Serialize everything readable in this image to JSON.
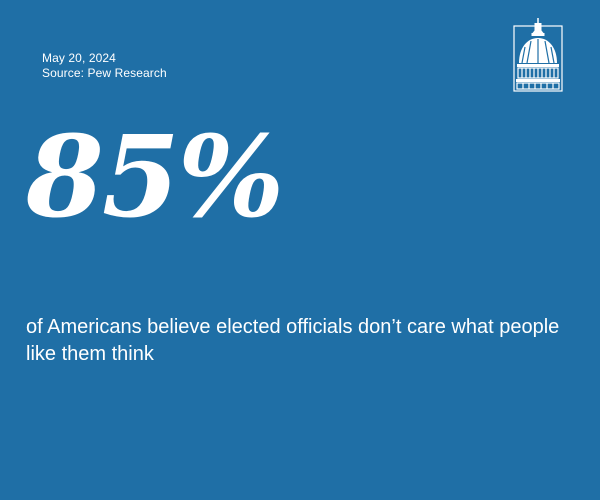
{
  "card": {
    "date": "May 20, 2024",
    "source": "Source: Pew Research",
    "stat": "85%",
    "caption": "of Americans believe elected officials don’t care what people like them think"
  },
  "colors": {
    "background": "#1f6fa6",
    "text": "#ffffff"
  },
  "icons": {
    "logo": "capitol-dome-logo"
  }
}
